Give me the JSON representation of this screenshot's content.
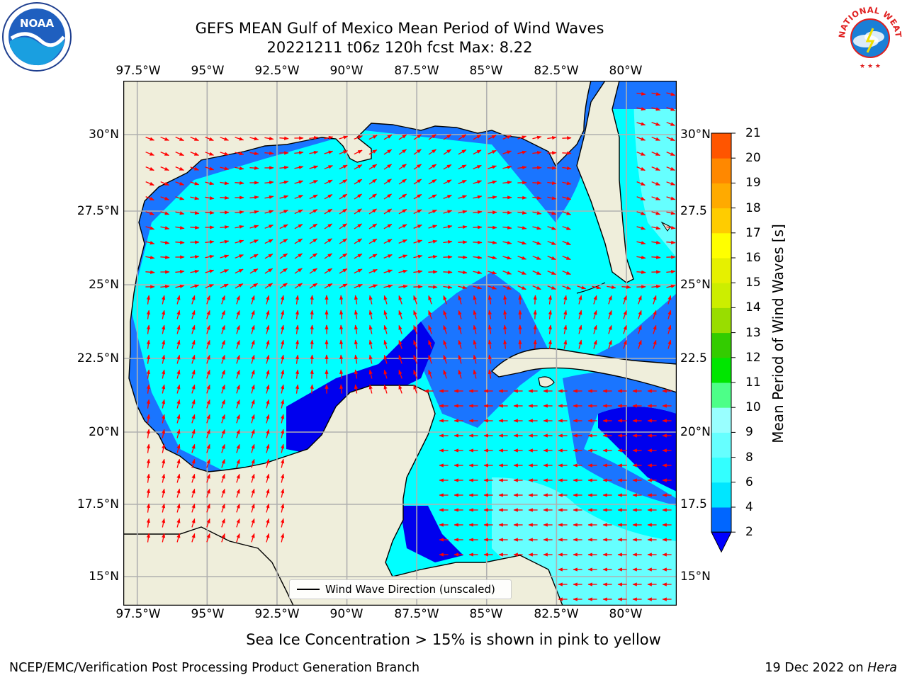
{
  "title_line1": "GEFS MEAN Gulf of Mexico Mean Period of Wind Waves",
  "title_line2": "20221211 t06z 120h fcst   Max: 8.22",
  "logos": {
    "left": "NOAA",
    "right": "NATIONAL WEATHER SERVICE"
  },
  "lon_labels": [
    "97.5°W",
    "95°W",
    "92.5°W",
    "90°W",
    "87.5°W",
    "85°W",
    "82.5°W",
    "80°W"
  ],
  "lat_labels": [
    "30°N",
    "27.5°N",
    "25°N",
    "22.5°N",
    "20°N",
    "17.5°N",
    "15°N"
  ],
  "lat_labels_right": [
    "30°N",
    "27.5",
    "25°N",
    "22.5",
    "20°N",
    "17.5",
    "15°N"
  ],
  "map_extent": {
    "lon_min": -98.0,
    "lon_max": -78.2,
    "lat_min": 14.0,
    "lat_max": 31.8
  },
  "colorbar": {
    "label": "Mean Period of Wind Waves [s]",
    "ticks": [
      "2",
      "4",
      "6",
      "8",
      "9",
      "10",
      "11",
      "12",
      "13",
      "14",
      "15",
      "16",
      "17",
      "18",
      "19",
      "20",
      "21"
    ],
    "colors": [
      "#0066ff",
      "#00e6ff",
      "#33ffff",
      "#66ffff",
      "#99ffff",
      "#4dff88",
      "#00e600",
      "#33cc00",
      "#99dd00",
      "#ccee00",
      "#e6f000",
      "#ffff00",
      "#ffcc00",
      "#ffaa00",
      "#ff8800",
      "#ff5500",
      "#ff2200",
      "#ff0000"
    ],
    "extend_color": "#0000ff"
  },
  "legend_label": "Wind Wave Direction (unscaled)",
  "caption": "Sea Ice Concentration > 15% is shown in pink to yellow",
  "credit_left": "NCEP/EMC/Verification Post Processing Product Generation Branch",
  "credit_date": "19 Dec 2022 on ",
  "credit_machine": "Hera",
  "colors": {
    "land": "#efeedb",
    "arrow": "#ff0000",
    "grid": "#b0b0b0",
    "band_2_4": "#1a75ff",
    "band_lt2": "#0000ee",
    "band_4_6": "#00ffff",
    "band_6_8": "#55ffff"
  }
}
